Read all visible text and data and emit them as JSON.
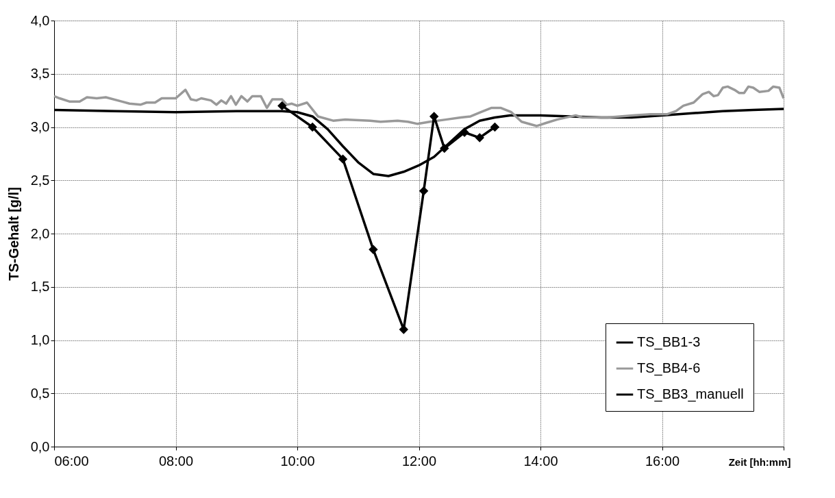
{
  "chart_data": {
    "type": "line",
    "xlabel": "Zeit [hh:mm]",
    "ylabel": "TS-Gehalt [g/l]",
    "xlim": [
      6,
      18
    ],
    "ylim": [
      0,
      4
    ],
    "xticks": [
      {
        "value": 6,
        "label": "06:00"
      },
      {
        "value": 8,
        "label": "08:00"
      },
      {
        "value": 10,
        "label": "10:00"
      },
      {
        "value": 12,
        "label": "12:00"
      },
      {
        "value": 14,
        "label": "14:00"
      },
      {
        "value": 16,
        "label": "16:00"
      },
      {
        "value": 18,
        "label": null
      }
    ],
    "yticks": [
      {
        "value": 0,
        "label": "0,0"
      },
      {
        "value": 0.5,
        "label": "0,5"
      },
      {
        "value": 1,
        "label": "1,0"
      },
      {
        "value": 1.5,
        "label": "1,5"
      },
      {
        "value": 2,
        "label": "2,0"
      },
      {
        "value": 2.5,
        "label": "2,5"
      },
      {
        "value": 3,
        "label": "3,0"
      },
      {
        "value": 3.5,
        "label": "3,5"
      },
      {
        "value": 4,
        "label": "4,0"
      }
    ],
    "grid": true,
    "legend": "bottom right",
    "line_style": "solid",
    "series": [
      {
        "name": "TS_BB1-3",
        "color": "#000000",
        "marker": "none",
        "x": [
          6,
          7,
          8,
          9,
          9.75,
          10,
          10.25,
          10.5,
          10.75,
          11,
          11.25,
          11.5,
          11.75,
          12,
          12.25,
          12.5,
          12.75,
          13,
          13.25,
          13.5,
          14,
          14.5,
          15,
          15.5,
          16,
          16.5,
          17,
          17.5,
          18
        ],
        "values": [
          3.16,
          3.15,
          3.14,
          3.15,
          3.15,
          3.14,
          3.1,
          2.98,
          2.82,
          2.67,
          2.56,
          2.54,
          2.58,
          2.64,
          2.72,
          2.85,
          2.98,
          3.06,
          3.09,
          3.11,
          3.11,
          3.1,
          3.09,
          3.09,
          3.11,
          3.13,
          3.15,
          3.16,
          3.17
        ]
      },
      {
        "name": "TS_BB4-6",
        "color": "#999999",
        "marker": "none",
        "x": [
          6,
          6.09,
          6.25,
          6.42,
          6.54,
          6.7,
          6.85,
          7.11,
          7.24,
          7.42,
          7.52,
          7.66,
          7.77,
          8.0,
          8.16,
          8.25,
          8.34,
          8.42,
          8.58,
          8.67,
          8.75,
          8.83,
          8.91,
          8.99,
          9.08,
          9.18,
          9.26,
          9.4,
          9.5,
          9.59,
          9.75,
          9.83,
          9.91,
          10.0,
          10.16,
          10.34,
          10.59,
          10.79,
          11.2,
          11.37,
          11.65,
          11.82,
          11.98,
          12.18,
          12.44,
          12.69,
          12.85,
          13.02,
          13.19,
          13.35,
          13.52,
          13.69,
          13.94,
          14.1,
          14.27,
          14.58,
          14.69,
          15.1,
          15.52,
          15.81,
          16.08,
          16.23,
          16.35,
          16.52,
          16.67,
          16.77,
          16.85,
          16.92,
          17.0,
          17.08,
          17.19,
          17.27,
          17.35,
          17.42,
          17.5,
          17.6,
          17.75,
          17.83,
          17.93,
          18
        ],
        "values": [
          3.29,
          3.27,
          3.24,
          3.24,
          3.28,
          3.27,
          3.28,
          3.24,
          3.22,
          3.21,
          3.23,
          3.23,
          3.27,
          3.27,
          3.35,
          3.26,
          3.25,
          3.27,
          3.25,
          3.21,
          3.25,
          3.22,
          3.29,
          3.21,
          3.29,
          3.24,
          3.29,
          3.29,
          3.18,
          3.26,
          3.26,
          3.21,
          3.22,
          3.2,
          3.23,
          3.1,
          3.06,
          3.07,
          3.06,
          3.05,
          3.06,
          3.05,
          3.03,
          3.05,
          3.07,
          3.09,
          3.1,
          3.14,
          3.18,
          3.18,
          3.14,
          3.05,
          3.01,
          3.04,
          3.07,
          3.11,
          3.09,
          3.09,
          3.11,
          3.12,
          3.12,
          3.15,
          3.2,
          3.23,
          3.31,
          3.33,
          3.29,
          3.3,
          3.37,
          3.38,
          3.35,
          3.32,
          3.32,
          3.38,
          3.37,
          3.33,
          3.34,
          3.38,
          3.37,
          3.27
        ]
      },
      {
        "name": "TS_BB3_manuell",
        "color": "#000000",
        "marker": "diamond",
        "x": [
          9.75,
          10.25,
          10.75,
          11.25,
          11.75,
          12.08,
          12.25,
          12.42,
          12.75,
          13.0,
          13.25
        ],
        "values": [
          3.2,
          3.0,
          2.7,
          1.85,
          1.1,
          2.4,
          3.1,
          2.8,
          2.95,
          2.9,
          3.0
        ]
      }
    ]
  }
}
